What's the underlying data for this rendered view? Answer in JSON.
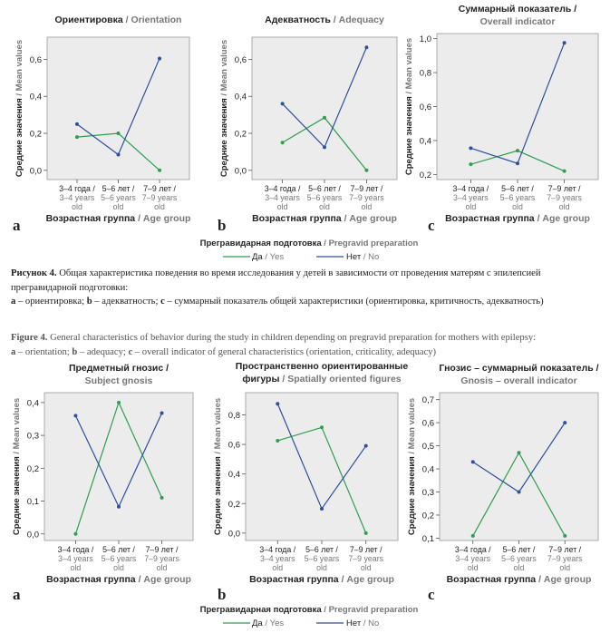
{
  "figure4_top": {
    "legend_title_ru": "Прегравидарная подготовка",
    "legend_title_en": "Pregravid preparation",
    "legend_yes_ru": "Да",
    "legend_yes_en": "Yes",
    "legend_no_ru": "Нет",
    "legend_no_en": "No"
  },
  "figure4_bottom": {
    "legend_title_ru": "Прегравидарная подготовка",
    "legend_title_en": "Pregravid preparation",
    "legend_yes_ru": "Да",
    "legend_yes_en": "Yes",
    "legend_no_ru": "Нет",
    "legend_no_en": "No"
  },
  "caption": {
    "ru_label": "Рисунок 4.",
    "ru_text": " Общая характеристика поведения во время исследования у детей в зависимости от проведения матерям с эпилепсией прегравидарной подготовки:",
    "ru_a": "a",
    "ru_a_text": " – ориентировка; ",
    "ru_b": "b",
    "ru_b_text": " – адекватность; ",
    "ru_c": "c",
    "ru_c_text": " – суммарный показатель общей характеристики (ориентировка, критичность, адекватность)",
    "en_label": "Figure 4.",
    "en_text": " General characteristics of behavior during the study in children depending on pregravid preparation for mothers with epilepsy:",
    "en_a": "a",
    "en_a_text": " – orientation; ",
    "en_b": "b",
    "en_b_text": " – adequacy; ",
    "en_c": "c",
    "en_c_text": " – overall indicator of general characteristics (orientation, criticality, adequacy)"
  },
  "colors": {
    "yes": "#2e9e4f",
    "no": "#2c4f9e",
    "plot_bg": "#ececec",
    "en_text": "#777777"
  },
  "chart_data": [
    {
      "type": "line",
      "panel_letter": "a",
      "title_ru": "Ориентировка",
      "title_en": "Orientation",
      "ylabel_ru": "Средние значения",
      "ylabel_en": "Mean values",
      "xlabel_ru": "Возрастная группа",
      "xlabel_en": "Age group",
      "categories": [
        [
          "3–4 года /",
          "3–4 years",
          "old"
        ],
        [
          "5–6 лет /",
          "5–6 years",
          "old"
        ],
        [
          "7–9 лет /",
          "7–9 years",
          "old"
        ]
      ],
      "yticks": [
        "0,0",
        "0,2",
        "0,4",
        "0,6"
      ],
      "ylim": [
        -0.05,
        0.72
      ],
      "series": [
        {
          "name": "Да / Yes",
          "color": "#2e9e4f",
          "values": [
            0.18,
            0.2,
            0.0
          ]
        },
        {
          "name": "Нет / No",
          "color": "#2c4f9e",
          "values": [
            0.25,
            0.085,
            0.605
          ]
        }
      ]
    },
    {
      "type": "line",
      "panel_letter": "b",
      "title_ru": "Адекватность",
      "title_en": "Adequacy",
      "ylabel_ru": "Средние значения",
      "ylabel_en": "Mean values",
      "xlabel_ru": "Возрастная группа",
      "xlabel_en": "Age group",
      "categories": [
        [
          "3–4 года /",
          "3–4 years",
          "old"
        ],
        [
          "5–6 лет /",
          "5–6 years",
          "old"
        ],
        [
          "7–9 лет /",
          "7–9 years",
          "old"
        ]
      ],
      "yticks": [
        "0,0",
        "0,2",
        "0,4",
        "0,6"
      ],
      "ylim": [
        -0.05,
        0.72
      ],
      "series": [
        {
          "name": "Да / Yes",
          "color": "#2e9e4f",
          "values": [
            0.15,
            0.285,
            0.0
          ]
        },
        {
          "name": "Нет / No",
          "color": "#2c4f9e",
          "values": [
            0.36,
            0.125,
            0.665
          ]
        }
      ]
    },
    {
      "type": "line",
      "panel_letter": "c",
      "title_ru": "Суммарный показатель /",
      "title_en": "Overall indicator",
      "ylabel_ru": "Средние значения",
      "ylabel_en": "Mean values",
      "xlabel_ru": "Возрастная группа",
      "xlabel_en": "Age group",
      "categories": [
        [
          "3–4 года /",
          "3–4 years",
          "old"
        ],
        [
          "5–6 лет /",
          "5–6 years",
          "old"
        ],
        [
          "7–9 лет /",
          "7–9 years",
          "old"
        ]
      ],
      "yticks": [
        "0,2",
        "0,4",
        "0,6",
        "0,8",
        "1,0"
      ],
      "ylim": [
        0.17,
        1.03
      ],
      "series": [
        {
          "name": "Да / Yes",
          "color": "#2e9e4f",
          "values": [
            0.26,
            0.34,
            0.22
          ]
        },
        {
          "name": "Нет / No",
          "color": "#2c4f9e",
          "values": [
            0.355,
            0.265,
            0.975
          ]
        }
      ]
    },
    {
      "type": "line",
      "panel_letter": "a",
      "title_ru": "Предметный гнозис /",
      "title_en": "Subject gnosis",
      "ylabel_ru": "Средние значения",
      "ylabel_en": "Mean values",
      "xlabel_ru": "Возрастная группа",
      "xlabel_en": "Age group",
      "categories": [
        [
          "3–4 года /",
          "3–4 years",
          "old"
        ],
        [
          "5–6 лет /",
          "5–6 years",
          "old"
        ],
        [
          "7–9 лет /",
          "7–9 years",
          "old"
        ]
      ],
      "yticks": [
        "0,0",
        "0,1",
        "0,2",
        "0,3",
        "0,4"
      ],
      "ylim": [
        -0.02,
        0.43
      ],
      "series": [
        {
          "name": "Да / Yes",
          "color": "#2e9e4f",
          "values": [
            0.0,
            0.4,
            0.11
          ]
        },
        {
          "name": "Нет / No",
          "color": "#2c4f9e",
          "values": [
            0.36,
            0.083,
            0.368
          ]
        }
      ]
    },
    {
      "type": "line",
      "panel_letter": "b",
      "title_ru": "Пространственно ориентированные",
      "title_en": "Spatially oriented figures",
      "title_ru_2": "фигуры",
      "ylabel_ru": "Средние значения",
      "ylabel_en": "Mean values",
      "xlabel_ru": "Возрастная группа",
      "xlabel_en": "Age group",
      "categories": [
        [
          "3–4 года /",
          "3–4 years",
          "old"
        ],
        [
          "5–6 лет /",
          "5–6 years",
          "old"
        ],
        [
          "7–9 лет /",
          "7–9 years",
          "old"
        ]
      ],
      "yticks": [
        "0,0",
        "0,2",
        "0,4",
        "0,6",
        "0,8"
      ],
      "ylim": [
        -0.05,
        0.95
      ],
      "series": [
        {
          "name": "Да / Yes",
          "color": "#2e9e4f",
          "values": [
            0.625,
            0.715,
            0.0
          ]
        },
        {
          "name": "Нет / No",
          "color": "#2c4f9e",
          "values": [
            0.875,
            0.165,
            0.59
          ]
        }
      ]
    },
    {
      "type": "line",
      "panel_letter": "c",
      "title_ru": "Гнозис – суммарный показатель /",
      "title_en": "Gnosis – overall indicator",
      "ylabel_ru": "Средние значения",
      "ylabel_en": "Mean values",
      "xlabel_ru": "Возрастная группа",
      "xlabel_en": "Age group",
      "categories": [
        [
          "3–4 года /",
          "3–4 years",
          "old"
        ],
        [
          "5–6 лет /",
          "5–6 years",
          "old"
        ],
        [
          "7–9 лет /",
          "7–9 years",
          "old"
        ]
      ],
      "yticks": [
        "0,1",
        "0,2",
        "0,3",
        "0,4",
        "0,5",
        "0,6",
        "0,7"
      ],
      "ylim": [
        0.09,
        0.73
      ],
      "series": [
        {
          "name": "Да / Yes",
          "color": "#2e9e4f",
          "values": [
            0.11,
            0.47,
            0.11
          ]
        },
        {
          "name": "Нет / No",
          "color": "#2c4f9e",
          "values": [
            0.43,
            0.3,
            0.6
          ]
        }
      ]
    }
  ]
}
